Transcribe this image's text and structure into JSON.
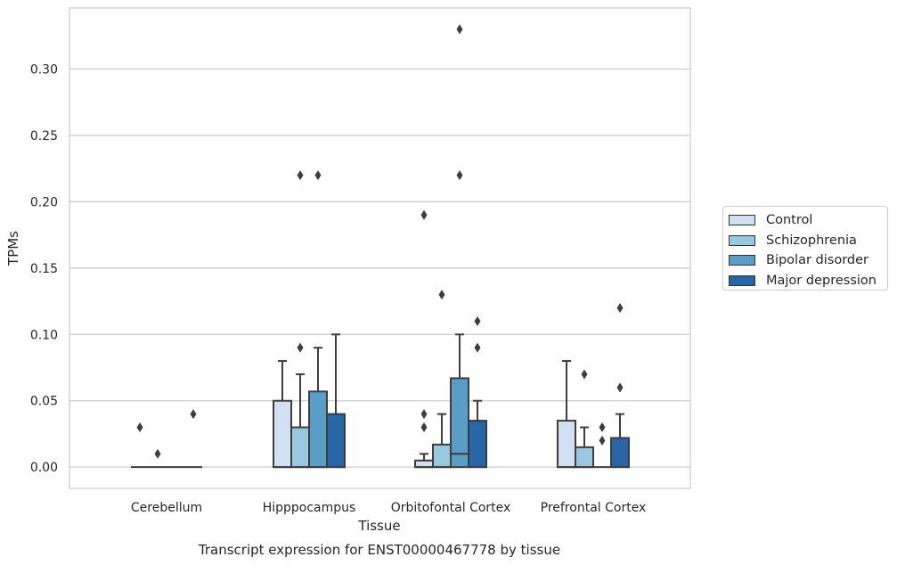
{
  "chart_data": {
    "type": "box",
    "title": "",
    "caption": "Transcript expression for ENST00000467778 by tissue",
    "xlabel": "Tissue",
    "ylabel": "TPMs",
    "ylim": [
      -0.016,
      0.346
    ],
    "yticks": [
      "0.00",
      "0.05",
      "0.10",
      "0.15",
      "0.20",
      "0.25",
      "0.30"
    ],
    "grid": "horizontal",
    "legend_position": "right",
    "categories": [
      "Cerebellum",
      "Hipppocampus",
      "Orbitofontal Cortex",
      "Prefrontal Cortex"
    ],
    "series": [
      {
        "name": "Control",
        "color": "#d0e0f0",
        "boxes": [
          {
            "q1": 0,
            "median": 0,
            "q3": 0,
            "whisker_low": 0,
            "whisker_high": 0,
            "outliers": [
              0.03
            ]
          },
          {
            "q1": 0,
            "median": 0,
            "q3": 0.05,
            "whisker_low": 0,
            "whisker_high": 0.08,
            "outliers": []
          },
          {
            "q1": 0,
            "median": 0,
            "q3": 0.005,
            "whisker_low": 0,
            "whisker_high": 0.01,
            "outliers": [
              0.03,
              0.04,
              0.19
            ]
          },
          {
            "q1": 0,
            "median": 0,
            "q3": 0.035,
            "whisker_low": 0,
            "whisker_high": 0.08,
            "outliers": []
          }
        ]
      },
      {
        "name": "Schizophrenia",
        "color": "#9ac7e0",
        "boxes": [
          {
            "q1": 0,
            "median": 0,
            "q3": 0,
            "whisker_low": 0,
            "whisker_high": 0,
            "outliers": [
              0.01
            ]
          },
          {
            "q1": 0,
            "median": 0,
            "q3": 0.03,
            "whisker_low": 0,
            "whisker_high": 0.07,
            "outliers": [
              0.09,
              0.22
            ]
          },
          {
            "q1": 0,
            "median": 0,
            "q3": 0.017,
            "whisker_low": 0,
            "whisker_high": 0.04,
            "outliers": [
              0.13
            ]
          },
          {
            "q1": 0,
            "median": 0,
            "q3": 0.015,
            "whisker_low": 0,
            "whisker_high": 0.03,
            "outliers": [
              0.07
            ]
          }
        ]
      },
      {
        "name": "Bipolar disorder",
        "color": "#5a9ec8",
        "boxes": [
          {
            "q1": 0,
            "median": 0,
            "q3": 0,
            "whisker_low": 0,
            "whisker_high": 0,
            "outliers": []
          },
          {
            "q1": 0,
            "median": 0,
            "q3": 0.057,
            "whisker_low": 0,
            "whisker_high": 0.09,
            "outliers": [
              0.22
            ]
          },
          {
            "q1": 0,
            "median": 0.01,
            "q3": 0.067,
            "whisker_low": 0,
            "whisker_high": 0.1,
            "outliers": [
              0.22,
              0.33
            ]
          },
          {
            "q1": 0,
            "median": 0,
            "q3": 0,
            "whisker_low": 0,
            "whisker_high": 0,
            "outliers": [
              0.02,
              0.03
            ]
          }
        ]
      },
      {
        "name": "Major depression",
        "color": "#2966a6",
        "boxes": [
          {
            "q1": 0,
            "median": 0,
            "q3": 0,
            "whisker_low": 0,
            "whisker_high": 0,
            "outliers": [
              0.04
            ]
          },
          {
            "q1": 0,
            "median": 0,
            "q3": 0.04,
            "whisker_low": 0,
            "whisker_high": 0.1,
            "outliers": []
          },
          {
            "q1": 0,
            "median": 0,
            "q3": 0.035,
            "whisker_low": 0,
            "whisker_high": 0.05,
            "outliers": [
              0.09,
              0.11
            ]
          },
          {
            "q1": 0,
            "median": 0,
            "q3": 0.022,
            "whisker_low": 0,
            "whisker_high": 0.04,
            "outliers": [
              0.06,
              0.12
            ]
          }
        ]
      }
    ]
  }
}
